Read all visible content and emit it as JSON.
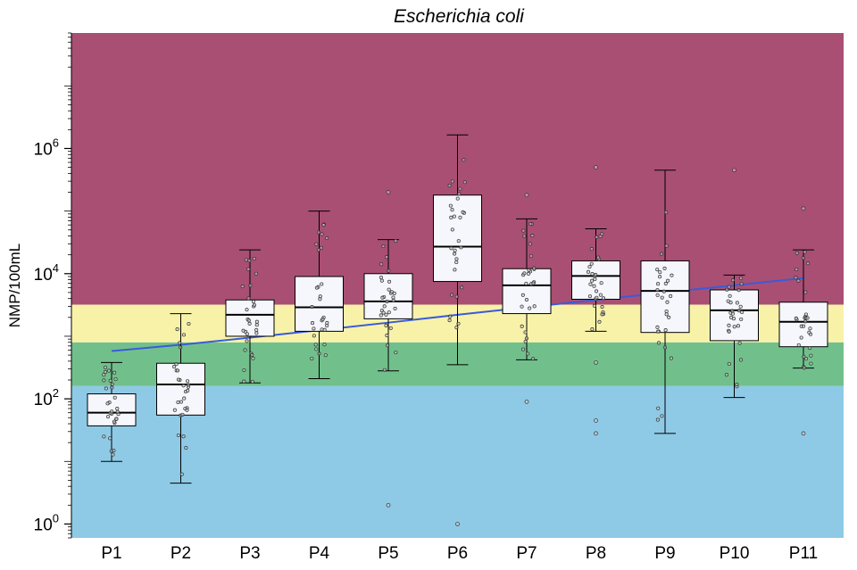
{
  "chart_data": {
    "type": "box",
    "title": "Escherichia coli",
    "xlabel": "",
    "ylabel": "NMP/100mL",
    "yscale": "log10",
    "ylim": [
      0.6,
      70000000
    ],
    "y_ticks": [
      {
        "value": 1,
        "base": "10",
        "exp": "0"
      },
      {
        "value": 100,
        "base": "10",
        "exp": "2"
      },
      {
        "value": 10000,
        "base": "10",
        "exp": "4"
      },
      {
        "value": 1000000,
        "base": "10",
        "exp": "6"
      }
    ],
    "categories": [
      "P1",
      "P2",
      "P3",
      "P4",
      "P5",
      "P6",
      "P7",
      "P8",
      "P9",
      "P10",
      "P11"
    ],
    "background_bands": [
      {
        "from": 0.6,
        "to": 160,
        "color": "#8ecae6"
      },
      {
        "from": 160,
        "to": 800,
        "color": "#71c08b"
      },
      {
        "from": 800,
        "to": 3200,
        "color": "#f8f2a9"
      },
      {
        "from": 3200,
        "to": 70000000,
        "color": "#a94f73"
      }
    ],
    "boxes": [
      {
        "category": "P1",
        "whisker_low": 10,
        "q1": 37,
        "median": 60,
        "q3": 120,
        "whisker_high": 380
      },
      {
        "category": "P2",
        "whisker_low": 4.5,
        "q1": 55,
        "median": 170,
        "q3": 370,
        "whisker_high": 2300
      },
      {
        "category": "P3",
        "whisker_low": 180,
        "q1": 1000,
        "median": 2200,
        "q3": 3800,
        "whisker_high": 24000
      },
      {
        "category": "P4",
        "whisker_low": 210,
        "q1": 1200,
        "median": 2900,
        "q3": 9000,
        "whisker_high": 100000
      },
      {
        "category": "P5",
        "whisker_low": 280,
        "q1": 1900,
        "median": 3600,
        "q3": 10000,
        "whisker_high": 35000
      },
      {
        "category": "P6",
        "whisker_low": 350,
        "q1": 7500,
        "median": 27000,
        "q3": 180000,
        "whisker_high": 1650000
      },
      {
        "category": "P7",
        "whisker_low": 420,
        "q1": 2300,
        "median": 6500,
        "q3": 12000,
        "whisker_high": 75000
      },
      {
        "category": "P8",
        "whisker_low": 1200,
        "q1": 3900,
        "median": 9200,
        "q3": 16000,
        "whisker_high": 52000
      },
      {
        "category": "P9",
        "whisker_low": 28,
        "q1": 1150,
        "median": 5300,
        "q3": 16000,
        "whisker_high": 450000
      },
      {
        "category": "P10",
        "whisker_low": 105,
        "q1": 850,
        "median": 2600,
        "q3": 5500,
        "whisker_high": 9500
      },
      {
        "category": "P11",
        "whisker_low": 310,
        "q1": 680,
        "median": 1700,
        "q3": 3500,
        "whisker_high": 24000
      }
    ],
    "outliers": [
      {
        "category": "P5",
        "values": [
          200000,
          2
        ]
      },
      {
        "category": "P6",
        "values": [
          1
        ]
      },
      {
        "category": "P7",
        "values": [
          180000,
          90
        ]
      },
      {
        "category": "P8",
        "values": [
          500000,
          380,
          45,
          28
        ]
      },
      {
        "category": "P10",
        "values": [
          450000
        ]
      },
      {
        "category": "P11",
        "values": [
          110000,
          28
        ]
      }
    ],
    "trend_line": {
      "color": "#3a5bd9",
      "x": [
        "P1",
        "P2",
        "P3",
        "P4",
        "P5",
        "P6",
        "P7",
        "P8",
        "P9",
        "P10",
        "P11"
      ],
      "y": [
        580,
        730,
        950,
        1250,
        1650,
        2200,
        2900,
        3800,
        5000,
        6500,
        8500
      ]
    },
    "box_fill": "#f6f7fc",
    "point_color": "#333333"
  }
}
